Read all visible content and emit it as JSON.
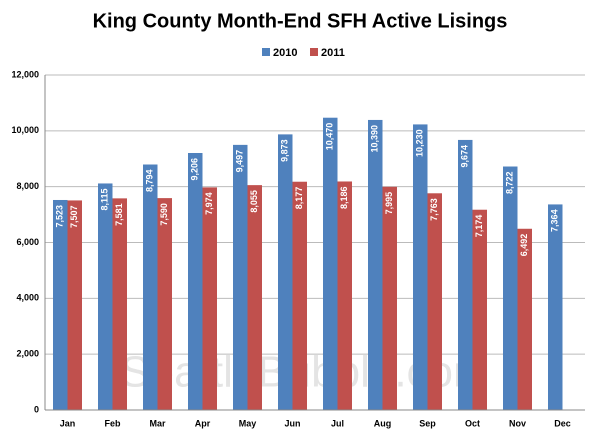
{
  "chart_data": {
    "type": "bar",
    "title": "King County Month-End SFH Active Lisings",
    "watermark": "SeattleBubble.com",
    "categories": [
      "Jan",
      "Feb",
      "Mar",
      "Apr",
      "May",
      "Jun",
      "Jul",
      "Aug",
      "Sep",
      "Oct",
      "Nov",
      "Dec"
    ],
    "series": [
      {
        "name": "2010",
        "color": "#4f81bd",
        "values": [
          7523,
          8115,
          8794,
          9206,
          9497,
          9873,
          10470,
          10390,
          10230,
          9674,
          8722,
          7364
        ],
        "value_labels": [
          "7,523",
          "8,115",
          "8,794",
          "9,206",
          "9,497",
          "9,873",
          "10,470",
          "10,390",
          "10,230",
          "9,674",
          "8,722",
          "7,364"
        ]
      },
      {
        "name": "2011",
        "color": "#c0504d",
        "values": [
          7507,
          7581,
          7590,
          7974,
          8055,
          8177,
          8186,
          7995,
          7763,
          7174,
          6492,
          null
        ],
        "value_labels": [
          "7,507",
          "7,581",
          "7,590",
          "7,974",
          "8,055",
          "8,177",
          "8,186",
          "7,995",
          "7,763",
          "7,174",
          "6,492",
          null
        ]
      }
    ],
    "ylim": [
      0,
      12000
    ],
    "yticks": [
      0,
      {
        "value": 2000,
        "label": "2,000"
      },
      {
        "value": 4000,
        "label": "4,000"
      },
      {
        "value": 6000,
        "label": "6,000"
      },
      {
        "value": 8000,
        "label": "8,000"
      },
      {
        "value": 10000,
        "label": "10,000"
      },
      {
        "value": 12000,
        "label": "12,000"
      }
    ],
    "grid": true,
    "legend": "top"
  }
}
